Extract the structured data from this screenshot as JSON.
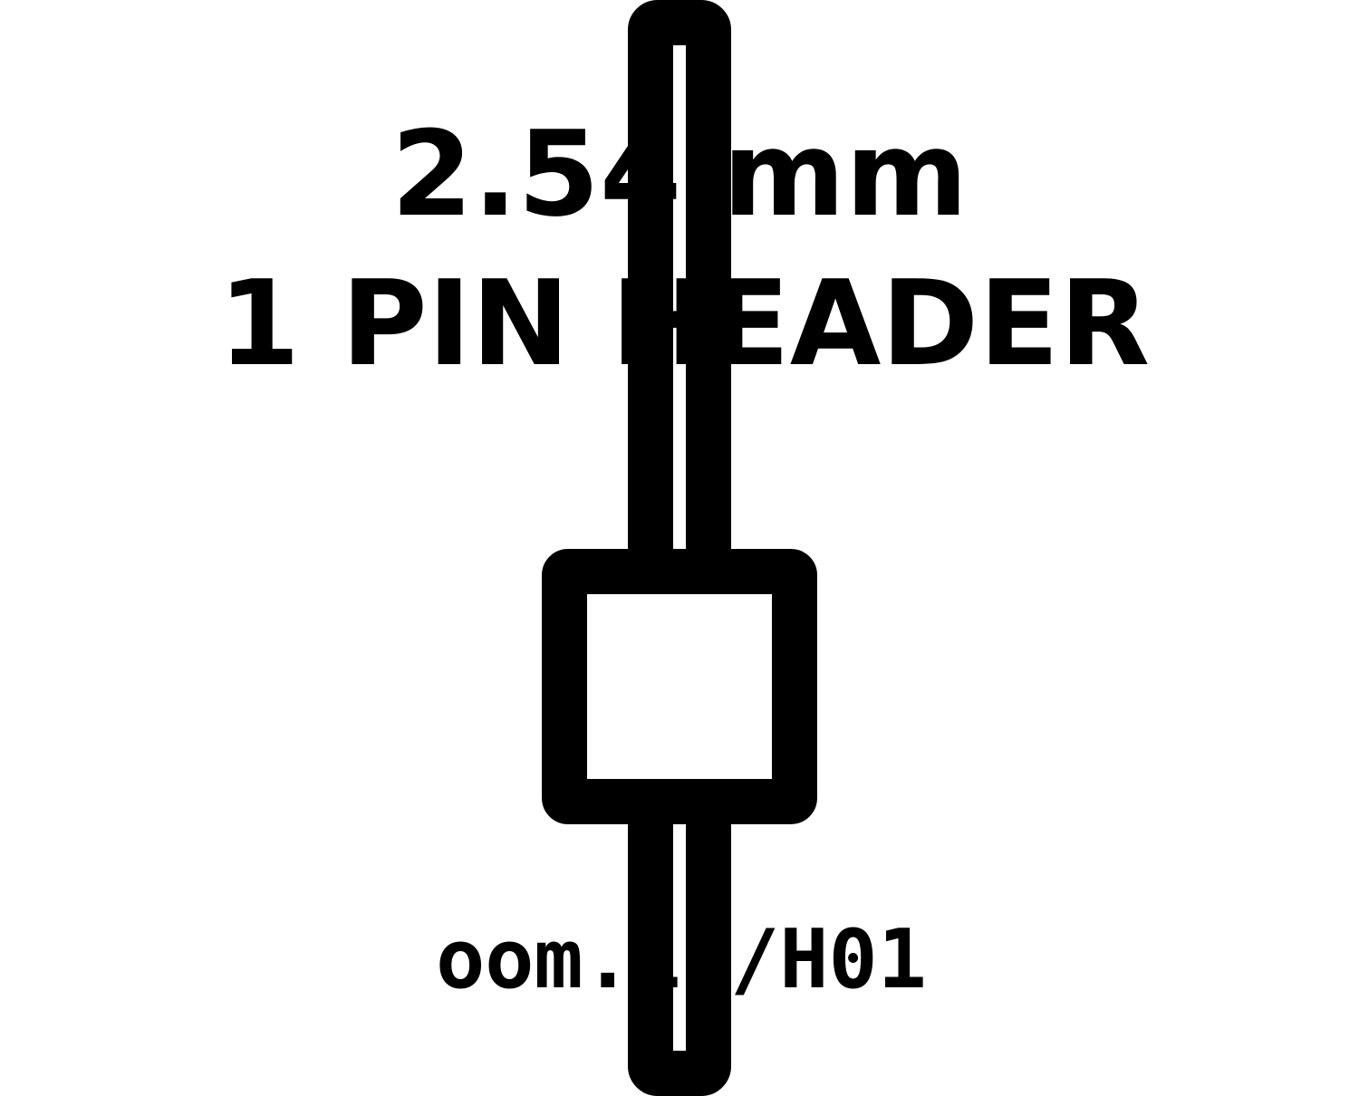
{
  "title": {
    "line1": "2.54 mm",
    "line2": "1 PIN HEADER"
  },
  "footer": {
    "code": "oom.1 /H01"
  },
  "colors": {
    "ink": "#000000",
    "paper": "#ffffff"
  }
}
